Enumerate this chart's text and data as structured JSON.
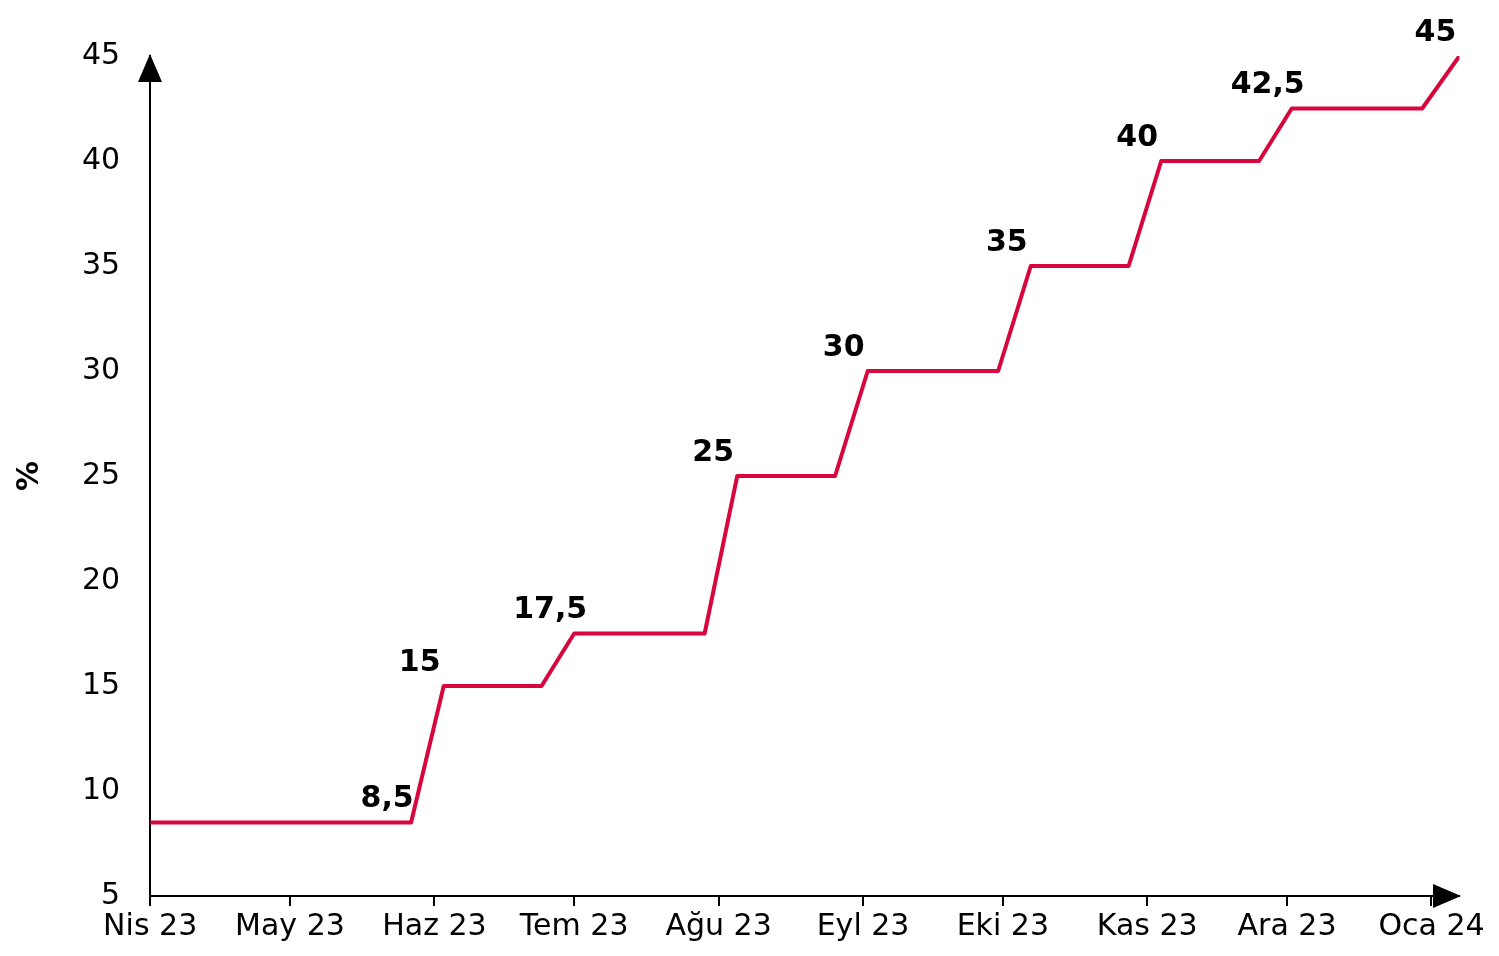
{
  "chart_data": {
    "type": "line",
    "ylabel": "%",
    "ylim": [
      5,
      45
    ],
    "yticks": [
      5,
      10,
      15,
      20,
      25,
      30,
      35,
      40,
      45
    ],
    "xlim": [
      "2023-04-01",
      "2024-01-07"
    ],
    "xticks": [
      {
        "value": "2023-04-01",
        "label": "Nis 23"
      },
      {
        "value": "2023-05-01",
        "label": "May 23"
      },
      {
        "value": "2023-06-01",
        "label": "Haz 23"
      },
      {
        "value": "2023-07-01",
        "label": "Tem 23"
      },
      {
        "value": "2023-08-01",
        "label": "Ağu 23"
      },
      {
        "value": "2023-09-01",
        "label": "Eyl 23"
      },
      {
        "value": "2023-10-01",
        "label": "Eki 23"
      },
      {
        "value": "2023-11-01",
        "label": "Kas 23"
      },
      {
        "value": "2023-12-01",
        "label": "Ara 23"
      },
      {
        "value": "2024-01-01",
        "label": "Oca 24"
      }
    ],
    "legend": false,
    "marker": "none",
    "line_style": "solid",
    "series": [
      {
        "color": "#d7063c",
        "x": [
          "2023-04-01",
          "2023-05-27",
          "2023-06-03",
          "2023-06-24",
          "2023-07-01",
          "2023-07-29",
          "2023-08-05",
          "2023-08-26",
          "2023-09-02",
          "2023-09-30",
          "2023-10-07",
          "2023-10-28",
          "2023-11-04",
          "2023-11-25",
          "2023-12-02",
          "2023-12-30",
          "2024-01-07"
        ],
        "values": [
          8.5,
          8.5,
          15,
          15,
          17.5,
          17.5,
          25,
          25,
          30,
          30,
          35,
          35,
          40,
          40,
          42.5,
          42.5,
          45
        ],
        "value_labels": [
          null,
          "8,5",
          "15",
          null,
          "17,5",
          null,
          "25",
          null,
          "30",
          null,
          "35",
          null,
          "40",
          null,
          "42,5",
          null,
          "45"
        ]
      }
    ]
  }
}
